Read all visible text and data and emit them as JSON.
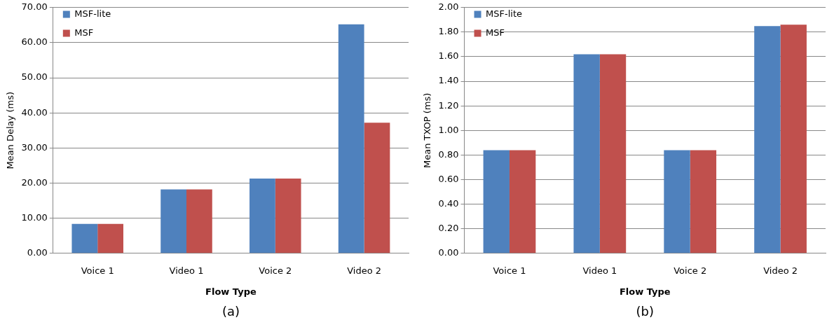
{
  "chart_data": [
    {
      "type": "bar",
      "xlabel": "Flow Type",
      "ylabel": "Mean Delay (ms)",
      "categories": [
        "Voice 1",
        "Video 1",
        "Voice 2",
        "Video 2"
      ],
      "series": [
        {
          "name": "MSF-lite",
          "color": "#4f81bd",
          "values": [
            8.4,
            18.2,
            21.3,
            65.2
          ]
        },
        {
          "name": "MSF",
          "color": "#c0504d",
          "values": [
            8.4,
            18.2,
            21.3,
            37.2
          ]
        }
      ],
      "ylim": [
        0,
        70
      ],
      "yticks": [
        {
          "value": 0,
          "label": "0.00"
        },
        {
          "value": 10,
          "label": "10.00"
        },
        {
          "value": 20,
          "label": "20.00"
        },
        {
          "value": 30,
          "label": "30.00"
        },
        {
          "value": 40,
          "label": "40.00"
        },
        {
          "value": 50,
          "label": "50.00"
        },
        {
          "value": 60,
          "label": "60.00"
        },
        {
          "value": 70,
          "label": "70.00"
        }
      ],
      "grid": "y",
      "legend": "top left",
      "annotations": [
        "(a)"
      ]
    },
    {
      "type": "bar",
      "xlabel": "Flow Type",
      "ylabel": "Mean TXOP (ms)",
      "categories": [
        "Voice 1",
        "Video 1",
        "Voice 2",
        "Video 2"
      ],
      "series": [
        {
          "name": "MSF-lite",
          "color": "#4f81bd",
          "values": [
            0.84,
            1.62,
            0.84,
            1.85
          ]
        },
        {
          "name": "MSF",
          "color": "#c0504d",
          "values": [
            0.84,
            1.62,
            0.84,
            1.86
          ]
        }
      ],
      "ylim": [
        0,
        2
      ],
      "yticks": [
        {
          "value": 0,
          "label": "0.00"
        },
        {
          "value": 0.2,
          "label": "0.20"
        },
        {
          "value": 0.4,
          "label": "0.40"
        },
        {
          "value": 0.6,
          "label": "0.60"
        },
        {
          "value": 0.8,
          "label": "0.80"
        },
        {
          "value": 1,
          "label": "1.00"
        },
        {
          "value": 1.2,
          "label": "1.20"
        },
        {
          "value": 1.4,
          "label": "1.40"
        },
        {
          "value": 1.6,
          "label": "1.60"
        },
        {
          "value": 1.8,
          "label": "1.80"
        },
        {
          "value": 2,
          "label": "2.00"
        }
      ],
      "grid": "y",
      "legend": "top left",
      "annotations": [
        "(b)"
      ]
    }
  ]
}
